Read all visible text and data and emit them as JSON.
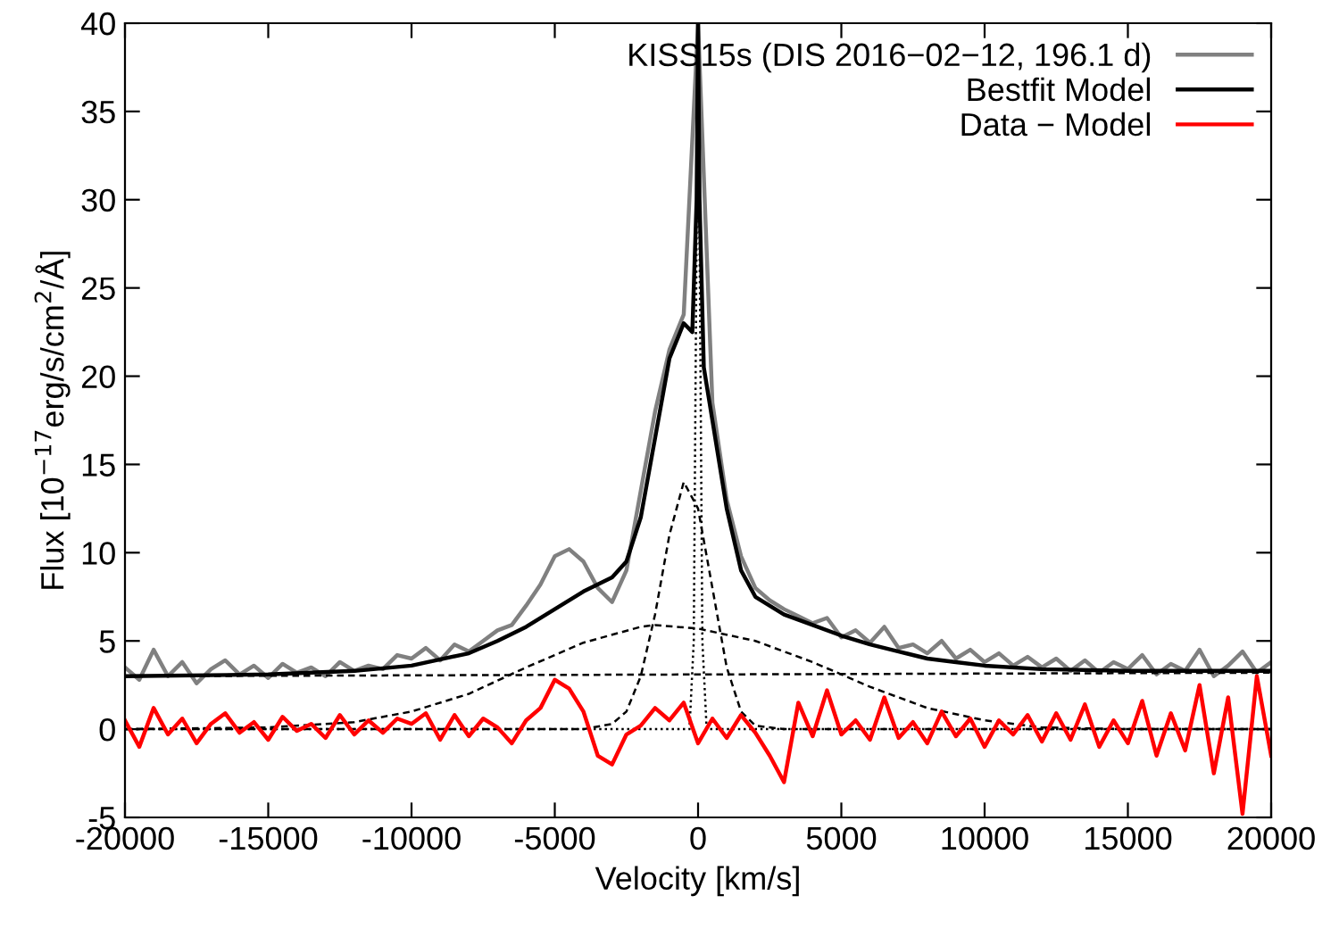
{
  "chart_data": {
    "type": "line",
    "xlabel": "Velocity [km/s]",
    "ylabel": "Flux [10$^{−17}$erg/s/cm$^{2}$/Å]",
    "xlim": [
      -20000,
      20000
    ],
    "xticks": [
      -20000,
      -15000,
      -10000,
      -5000,
      0,
      5000,
      10000,
      15000,
      20000
    ],
    "ylim": [
      -5,
      40
    ],
    "yticks": [
      -5,
      0,
      5,
      10,
      15,
      20,
      25,
      30,
      35,
      40
    ],
    "grid": false,
    "legend": "top right",
    "marker": "none",
    "series": [
      {
        "name": "KISS15s (DIS 2016−02−12, 196.1 d)",
        "color": "#808080",
        "line_style": "solid",
        "x": [
          -20000,
          -19500,
          -19000,
          -18500,
          -18000,
          -17500,
          -17000,
          -16500,
          -16000,
          -15500,
          -15000,
          -14500,
          -14000,
          -13500,
          -13000,
          -12500,
          -12000,
          -11500,
          -11000,
          -10500,
          -10000,
          -9500,
          -9000,
          -8500,
          -8000,
          -7500,
          -7000,
          -6500,
          -6000,
          -5500,
          -5000,
          -4500,
          -4000,
          -3500,
          -3000,
          -2500,
          -2000,
          -1500,
          -1000,
          -500,
          0,
          500,
          1000,
          1500,
          2000,
          2500,
          3000,
          3500,
          4000,
          4500,
          5000,
          5500,
          6000,
          6500,
          7000,
          7500,
          8000,
          8500,
          9000,
          9500,
          10000,
          10500,
          11000,
          11500,
          12000,
          12500,
          13000,
          13500,
          14000,
          14500,
          15000,
          15500,
          16000,
          16500,
          17000,
          17500,
          18000,
          18500,
          19000,
          19500,
          20000
        ],
        "values": [
          3.5,
          2.8,
          4.5,
          3.0,
          3.8,
          2.6,
          3.4,
          3.9,
          3.1,
          3.6,
          2.9,
          3.7,
          3.2,
          3.5,
          3.0,
          3.8,
          3.3,
          3.6,
          3.4,
          4.2,
          4.0,
          4.6,
          3.9,
          4.8,
          4.4,
          5.0,
          5.6,
          5.9,
          7.0,
          8.2,
          9.8,
          10.2,
          9.5,
          8.0,
          7.2,
          9.0,
          13.5,
          18.0,
          21.5,
          23.5,
          40,
          18.5,
          13.0,
          9.8,
          8.0,
          7.3,
          6.8,
          6.4,
          6.0,
          6.3,
          5.2,
          5.6,
          4.9,
          5.8,
          4.6,
          4.8,
          4.3,
          5.0,
          4.0,
          4.5,
          3.8,
          4.3,
          3.6,
          4.1,
          3.5,
          4.0,
          3.3,
          3.9,
          3.2,
          3.8,
          3.4,
          4.2,
          3.1,
          3.7,
          3.3,
          4.5,
          3.0,
          3.6,
          4.4,
          3.2,
          3.8
        ]
      },
      {
        "color": "#000000",
        "line_style": "dashed",
        "x": [
          -20000,
          20000
        ],
        "values": [
          3.0,
          3.2
        ]
      },
      {
        "color": "#000000",
        "line_style": "dashed",
        "x": [
          -20000,
          -15000,
          -12000,
          -10000,
          -8000,
          -6000,
          -4000,
          -2000,
          -1500,
          0,
          2000,
          4000,
          6000,
          8000,
          10000,
          12000,
          15000,
          20000
        ],
        "values": [
          0,
          0.1,
          0.4,
          1.0,
          2.0,
          3.5,
          4.9,
          5.8,
          5.9,
          5.7,
          5.0,
          3.8,
          2.4,
          1.2,
          0.5,
          0.1,
          0,
          0
        ]
      },
      {
        "color": "#000000",
        "line_style": "dashed",
        "x": [
          -20000,
          -4000,
          -3000,
          -2500,
          -2000,
          -1500,
          -1000,
          -500,
          0,
          500,
          1000,
          1500,
          2000,
          3000,
          20000
        ],
        "values": [
          0,
          0,
          0.3,
          1.0,
          3.0,
          6.5,
          11.0,
          14.0,
          12.5,
          8.0,
          3.5,
          1.0,
          0.2,
          0,
          0
        ]
      },
      {
        "color": "#000000",
        "line_style": "dotted",
        "x": [
          -20000,
          -300,
          -150,
          0,
          150,
          300,
          20000
        ],
        "values": [
          0,
          0,
          5,
          40,
          5,
          0,
          0
        ]
      },
      {
        "name": "Bestfit Model",
        "color": "#000000",
        "line_style": "solid",
        "x": [
          -20000,
          -15000,
          -12000,
          -10000,
          -8000,
          -7000,
          -6000,
          -5000,
          -4000,
          -3000,
          -2500,
          -2000,
          -1500,
          -1000,
          -500,
          -200,
          -50,
          0,
          50,
          200,
          500,
          1000,
          1500,
          2000,
          3000,
          4000,
          5000,
          6000,
          7000,
          8000,
          9000,
          10000,
          12000,
          15000,
          20000
        ],
        "values": [
          3.0,
          3.1,
          3.3,
          3.6,
          4.3,
          5.0,
          5.8,
          6.8,
          7.8,
          8.6,
          9.5,
          12.0,
          16.5,
          21.0,
          23.0,
          22.5,
          30,
          40,
          30,
          20.5,
          17.5,
          12.5,
          9.0,
          7.5,
          6.5,
          5.9,
          5.3,
          4.8,
          4.4,
          4.0,
          3.8,
          3.6,
          3.4,
          3.3,
          3.3
        ]
      },
      {
        "name": "Data − Model",
        "color": "#ff0000",
        "line_style": "solid",
        "x": [
          -20000,
          -19500,
          -19000,
          -18500,
          -18000,
          -17500,
          -17000,
          -16500,
          -16000,
          -15500,
          -15000,
          -14500,
          -14000,
          -13500,
          -13000,
          -12500,
          -12000,
          -11500,
          -11000,
          -10500,
          -10000,
          -9500,
          -9000,
          -8500,
          -8000,
          -7500,
          -7000,
          -6500,
          -6000,
          -5500,
          -5000,
          -4500,
          -4000,
          -3500,
          -3000,
          -2500,
          -2000,
          -1500,
          -1000,
          -500,
          0,
          500,
          1000,
          1500,
          2000,
          2500,
          3000,
          3500,
          4000,
          4500,
          5000,
          5500,
          6000,
          6500,
          7000,
          7500,
          8000,
          8500,
          9000,
          9500,
          10000,
          10500,
          11000,
          11500,
          12000,
          12500,
          13000,
          13500,
          14000,
          14500,
          15000,
          15500,
          16000,
          16500,
          17000,
          17500,
          18000,
          18500,
          19000,
          19500,
          20000
        ],
        "values": [
          0.5,
          -1.0,
          1.2,
          -0.3,
          0.6,
          -0.8,
          0.3,
          0.9,
          -0.2,
          0.4,
          -0.6,
          0.7,
          -0.1,
          0.3,
          -0.5,
          0.8,
          -0.3,
          0.5,
          -0.2,
          0.6,
          0.3,
          0.9,
          -0.6,
          0.8,
          -0.4,
          0.6,
          0.1,
          -0.8,
          0.5,
          1.2,
          2.8,
          2.3,
          1.0,
          -1.5,
          -2.0,
          -0.3,
          0.2,
          1.2,
          0.5,
          1.5,
          -0.8,
          0.6,
          -0.5,
          0.8,
          -0.2,
          -1.5,
          -3.0,
          1.5,
          -0.4,
          2.2,
          -0.3,
          0.5,
          -0.6,
          1.8,
          -0.5,
          0.4,
          -0.8,
          1.0,
          -0.4,
          0.6,
          -1.0,
          0.5,
          -0.3,
          0.8,
          -0.7,
          0.9,
          -0.6,
          1.4,
          -1.0,
          0.5,
          -0.8,
          1.6,
          -1.5,
          0.9,
          -1.2,
          2.5,
          -2.5,
          1.8,
          -4.8,
          3.0,
          -1.5
        ]
      }
    ]
  }
}
